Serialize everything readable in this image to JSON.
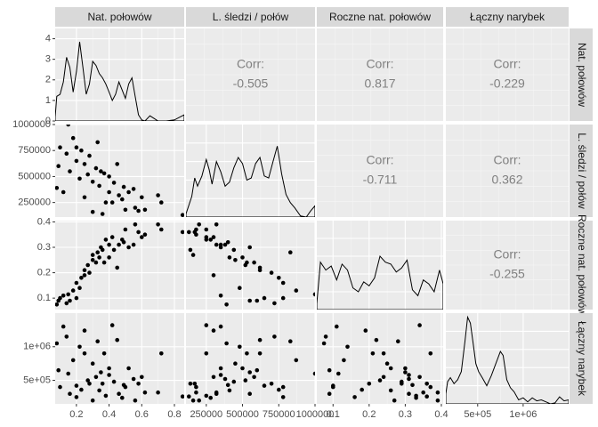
{
  "chart_data": {
    "type": "scatter-matrix",
    "variables": [
      "Nat. połowów",
      "L. śledzi / połów",
      "Roczne nat. połowów",
      "Łączny narybek"
    ],
    "ranges": [
      [
        0.07,
        0.86
      ],
      [
        110000,
        1000000
      ],
      [
        0.055,
        0.405
      ],
      [
        150000,
        1500000
      ]
    ],
    "ticks": [
      [
        "0.2",
        "0.4",
        "0.6",
        "0.8"
      ],
      [
        "250000",
        "500000",
        "750000",
        "1000000"
      ],
      [
        "0.1",
        "0.2",
        "0.3",
        "0.4"
      ],
      [
        "5e+05",
        "1e+06"
      ]
    ],
    "tick_values": [
      [
        0.2,
        0.4,
        0.6,
        0.8
      ],
      [
        250000,
        500000,
        750000,
        1000000
      ],
      [
        0.1,
        0.2,
        0.3,
        0.4
      ],
      [
        500000,
        1000000
      ]
    ],
    "density_yticks": [
      "0",
      "1",
      "2",
      "3",
      "4"
    ],
    "density_ytick_values": [
      0,
      1,
      2,
      3,
      4
    ],
    "corr_label": "Corr:",
    "correlations": [
      {
        "row": 0,
        "col": 1,
        "value": "-0.505"
      },
      {
        "row": 0,
        "col": 2,
        "value": "0.817"
      },
      {
        "row": 0,
        "col": 3,
        "value": "-0.229"
      },
      {
        "row": 1,
        "col": 2,
        "value": "-0.711"
      },
      {
        "row": 1,
        "col": 3,
        "value": "0.362"
      },
      {
        "row": 2,
        "col": 3,
        "value": "-0.255"
      }
    ],
    "densities": [
      {
        "x": [
          0.07,
          0.08,
          0.1,
          0.12,
          0.14,
          0.16,
          0.18,
          0.2,
          0.22,
          0.24,
          0.26,
          0.28,
          0.3,
          0.32,
          0.34,
          0.36,
          0.38,
          0.4,
          0.42,
          0.44,
          0.46,
          0.48,
          0.5,
          0.52,
          0.54,
          0.56,
          0.58,
          0.6,
          0.62,
          0.65,
          0.68,
          0.7,
          0.75,
          0.8,
          0.86
        ],
        "y": [
          0.2,
          1.2,
          1.3,
          1.9,
          3.1,
          2.6,
          1.4,
          2.4,
          3.85,
          2.6,
          1.3,
          1.8,
          2.9,
          2.7,
          2.3,
          2.1,
          1.8,
          1.4,
          1.0,
          1.3,
          1.9,
          1.5,
          1.1,
          1.8,
          2.1,
          1.2,
          0.3,
          0.05,
          0.0,
          0.25,
          0.1,
          0.0,
          0.0,
          0.05,
          0.3
        ]
      },
      {
        "x": [
          110000,
          150000,
          170000,
          190000,
          220000,
          250000,
          270000,
          290000,
          320000,
          350000,
          380000,
          410000,
          440000,
          470000,
          500000,
          530000,
          560000,
          590000,
          620000,
          650000,
          680000,
          710000,
          740000,
          770000,
          800000,
          830000,
          860000,
          900000,
          940000,
          970000,
          1000000
        ],
        "y": [
          0.15,
          1.0,
          1.9,
          1.5,
          2.0,
          2.8,
          2.3,
          1.6,
          2.7,
          2.2,
          1.5,
          1.7,
          2.4,
          2.9,
          2.6,
          1.8,
          1.9,
          2.6,
          2.9,
          2.0,
          1.9,
          2.7,
          3.45,
          2.1,
          1.1,
          0.7,
          0.45,
          0.05,
          0.0,
          0.3,
          0.55
        ]
      },
      {
        "x": [
          0.055,
          0.065,
          0.08,
          0.095,
          0.11,
          0.125,
          0.14,
          0.155,
          0.17,
          0.185,
          0.2,
          0.215,
          0.23,
          0.245,
          0.26,
          0.275,
          0.29,
          0.305,
          0.32,
          0.335,
          0.35,
          0.365,
          0.38,
          0.395,
          0.405
        ],
        "y": [
          0.3,
          2.4,
          2.0,
          2.2,
          1.5,
          2.3,
          2.0,
          1.1,
          0.9,
          1.4,
          1.2,
          1.6,
          2.7,
          2.4,
          2.3,
          1.9,
          2.1,
          2.5,
          1.0,
          0.7,
          1.5,
          1.3,
          0.9,
          2.0,
          1.3
        ]
      },
      {
        "x": [
          150000,
          170000,
          200000,
          240000,
          280000,
          320000,
          360000,
          390000,
          420000,
          450000,
          480000,
          510000,
          550000,
          600000,
          650000,
          700000,
          750000,
          780000,
          820000,
          860000,
          900000,
          950000,
          1000000,
          1050000,
          1100000,
          1150000,
          1200000,
          1250000,
          1300000,
          1350000,
          1400000,
          1450000,
          1500000
        ],
        "y": [
          0.5,
          1.1,
          1.3,
          1.0,
          1.2,
          1.6,
          3.1,
          4.3,
          4.0,
          3.0,
          2.0,
          1.6,
          1.3,
          0.9,
          1.4,
          2.0,
          2.6,
          2.4,
          1.2,
          0.8,
          0.6,
          0.2,
          0.3,
          0.1,
          0.3,
          0.15,
          0.2,
          0.1,
          0.0,
          0.05,
          0.35,
          0.15,
          0.2
        ]
      }
    ],
    "points": [
      [
        0.08,
        390000,
        0.075,
        1050000
      ],
      [
        0.09,
        600000,
        0.09,
        650000
      ],
      [
        0.1,
        780000,
        0.1,
        400000
      ],
      [
        0.12,
        350000,
        0.11,
        1300000
      ],
      [
        0.14,
        720000,
        0.08,
        1150000
      ],
      [
        0.15,
        1000000,
        0.115,
        600000
      ],
      [
        0.16,
        550000,
        0.09,
        300000
      ],
      [
        0.18,
        870000,
        0.13,
        800000
      ],
      [
        0.2,
        780000,
        0.16,
        250000
      ],
      [
        0.2,
        650000,
        0.1,
        420000
      ],
      [
        0.22,
        480000,
        0.14,
        1000000
      ],
      [
        0.23,
        750000,
        0.18,
        360000
      ],
      [
        0.25,
        620000,
        0.21,
        900000
      ],
      [
        0.25,
        300000,
        0.19,
        1240000
      ],
      [
        0.27,
        520000,
        0.23,
        500000
      ],
      [
        0.28,
        700000,
        0.2,
        450000
      ],
      [
        0.3,
        450000,
        0.25,
        750000
      ],
      [
        0.3,
        160000,
        0.27,
        200000
      ],
      [
        0.32,
        580000,
        0.24,
        550000
      ],
      [
        0.33,
        830000,
        0.28,
        1080000
      ],
      [
        0.34,
        410000,
        0.26,
        350000
      ],
      [
        0.35,
        550000,
        0.3,
        620000
      ],
      [
        0.36,
        140000,
        0.29,
        450000
      ],
      [
        0.37,
        530000,
        0.24,
        900000
      ],
      [
        0.38,
        250000,
        0.33,
        270000
      ],
      [
        0.4,
        500000,
        0.26,
        680000
      ],
      [
        0.4,
        350000,
        0.31,
        580000
      ],
      [
        0.42,
        250000,
        0.34,
        1320000
      ],
      [
        0.43,
        440000,
        0.29,
        480000
      ],
      [
        0.45,
        620000,
        0.22,
        1100000
      ],
      [
        0.46,
        320000,
        0.31,
        300000
      ],
      [
        0.48,
        280000,
        0.33,
        240000
      ],
      [
        0.49,
        400000,
        0.32,
        430000
      ],
      [
        0.5,
        180000,
        0.37,
        400000
      ],
      [
        0.52,
        350000,
        0.3,
        680000
      ],
      [
        0.55,
        380000,
        0.31,
        520000
      ],
      [
        0.56,
        200000,
        0.39,
        200000
      ],
      [
        0.58,
        170000,
        0.36,
        450000
      ],
      [
        0.6,
        300000,
        0.34,
        550000
      ],
      [
        0.62,
        180000,
        0.35,
        320000
      ],
      [
        0.7,
        320000,
        0.39,
        320000
      ],
      [
        0.72,
        250000,
        0.37,
        900000
      ],
      [
        0.85,
        130000,
        0.36,
        260000
      ]
    ]
  }
}
